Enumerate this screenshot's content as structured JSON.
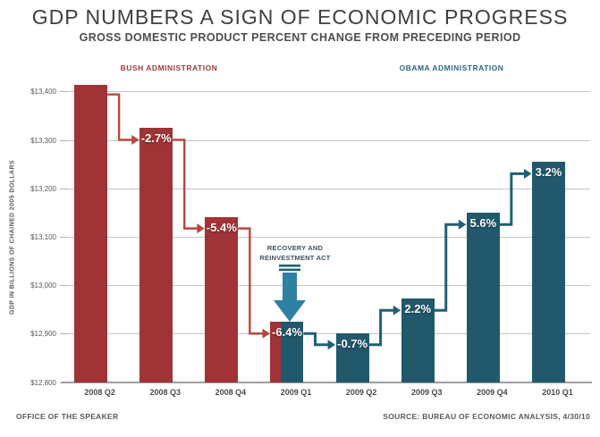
{
  "header": {
    "title": "GDP NUMBERS A SIGN OF ECONOMIC PROGRESS",
    "subtitle": "GROSS DOMESTIC PRODUCT PERCENT CHANGE FROM PRECEDING PERIOD"
  },
  "era_labels": {
    "bush": "BUSH ADMINISTRATION",
    "obama": "OBAMA ADMINISTRATION"
  },
  "annotation": {
    "line1": "RECOVERY AND",
    "line2": "REINVESTMENT ACT"
  },
  "footer": {
    "left": "OFFICE OF THE SPEAKER",
    "right": "SOURCE: BUREAU OF ECONOMIC ANALYSIS, 4/30/10"
  },
  "colors": {
    "bush_bar": "#a03335",
    "obama_bar": "#21586c",
    "bush_connector": "#b8463f",
    "obama_connector": "#1f6076",
    "era_arrow": "#2e81a2",
    "era_arrow_dash": "#1f6076",
    "gridline": "#c4c4c4",
    "baseline": "#9e9e9e"
  },
  "chart_data": {
    "type": "bar",
    "title": "GDP NUMBERS A SIGN OF ECONOMIC PROGRESS",
    "subtitle": "GROSS DOMESTIC PRODUCT PERCENT CHANGE FROM PRECEDING PERIOD",
    "ylabel": "GDP IN BILLIONS OF CHAINED 2005 DOLLARS",
    "xlabel": "",
    "categories": [
      "2008 Q2",
      "2008 Q3",
      "2008 Q4",
      "2009 Q1",
      "2009 Q2",
      "2009 Q3",
      "2009 Q4",
      "2010 Q1"
    ],
    "values": [
      13415,
      13325,
      13142,
      12925,
      12902,
      12973,
      13150,
      13255
    ],
    "pct_change_labels": [
      null,
      "-2.7%",
      "-5.4%",
      "-6.4%",
      "-0.7%",
      "2.2%",
      "5.6%",
      "3.2%"
    ],
    "bar_groups": [
      "bush",
      "bush",
      "bush",
      "split",
      "obama",
      "obama",
      "obama",
      "obama"
    ],
    "ylim": [
      12800,
      13450
    ],
    "yticks": [
      13400,
      13300,
      13200,
      13100,
      13000,
      12900,
      12800
    ],
    "ytick_prefix": "$",
    "grid": true,
    "legend_position": "none",
    "annotation_target": "2009 Q1"
  }
}
